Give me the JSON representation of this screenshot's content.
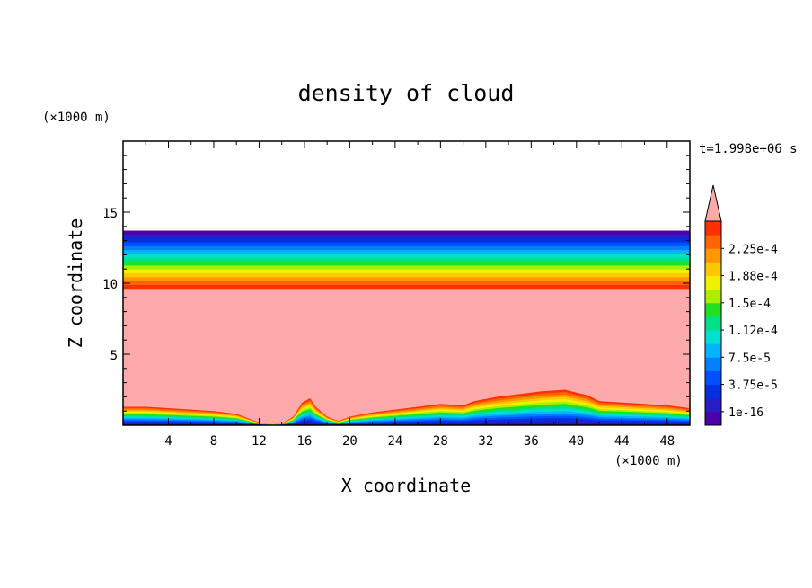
{
  "chart_data": {
    "type": "heatmap",
    "title": "density of cloud",
    "xlabel": "X coordinate",
    "ylabel": "Z coordinate",
    "x_unit": "(×1000 m)",
    "y_unit": "(×1000 m)",
    "time_label": "t=1.998e+06 s",
    "xlim": [
      0,
      50
    ],
    "ylim": [
      0,
      20
    ],
    "x_ticks": [
      4,
      8,
      12,
      16,
      20,
      24,
      28,
      32,
      36,
      40,
      44,
      48
    ],
    "y_ticks": [
      5,
      10,
      15
    ],
    "colorbar": {
      "labels": [
        "2.25e-4",
        "1.88e-4",
        "1.5e-4",
        "1.12e-4",
        "7.5e-5",
        "3.75e-5",
        "1e-16"
      ],
      "colors": [
        "#4b00a8",
        "#2a1cc8",
        "#0030e0",
        "#0050ff",
        "#0080ff",
        "#00b4ff",
        "#00e0d0",
        "#00e088",
        "#20e020",
        "#a8f000",
        "#f0f000",
        "#ffc800",
        "#ff9800",
        "#ff6400",
        "#ff3000"
      ],
      "over_color": "#ffaaaa"
    },
    "fields": {
      "upper_band_bottom_z": 9.6,
      "upper_band_top_z": 13.7,
      "lower_profile": {
        "x": [
          0,
          2,
          4,
          6,
          8,
          10,
          11,
          12,
          13,
          14,
          15,
          15.8,
          16.5,
          17,
          18,
          19,
          20,
          22,
          24,
          26,
          28,
          30,
          31,
          33,
          35,
          37,
          39,
          40,
          41,
          42,
          44,
          46,
          48,
          50
        ],
        "top_z": [
          1.3,
          1.3,
          1.2,
          1.1,
          1.0,
          0.8,
          0.5,
          0.2,
          0.05,
          0.1,
          0.6,
          1.6,
          1.9,
          1.3,
          0.6,
          0.3,
          0.6,
          0.9,
          1.1,
          1.3,
          1.5,
          1.4,
          1.7,
          2.0,
          2.2,
          2.4,
          2.5,
          2.3,
          2.1,
          1.7,
          1.6,
          1.5,
          1.4,
          1.2
        ]
      }
    }
  }
}
